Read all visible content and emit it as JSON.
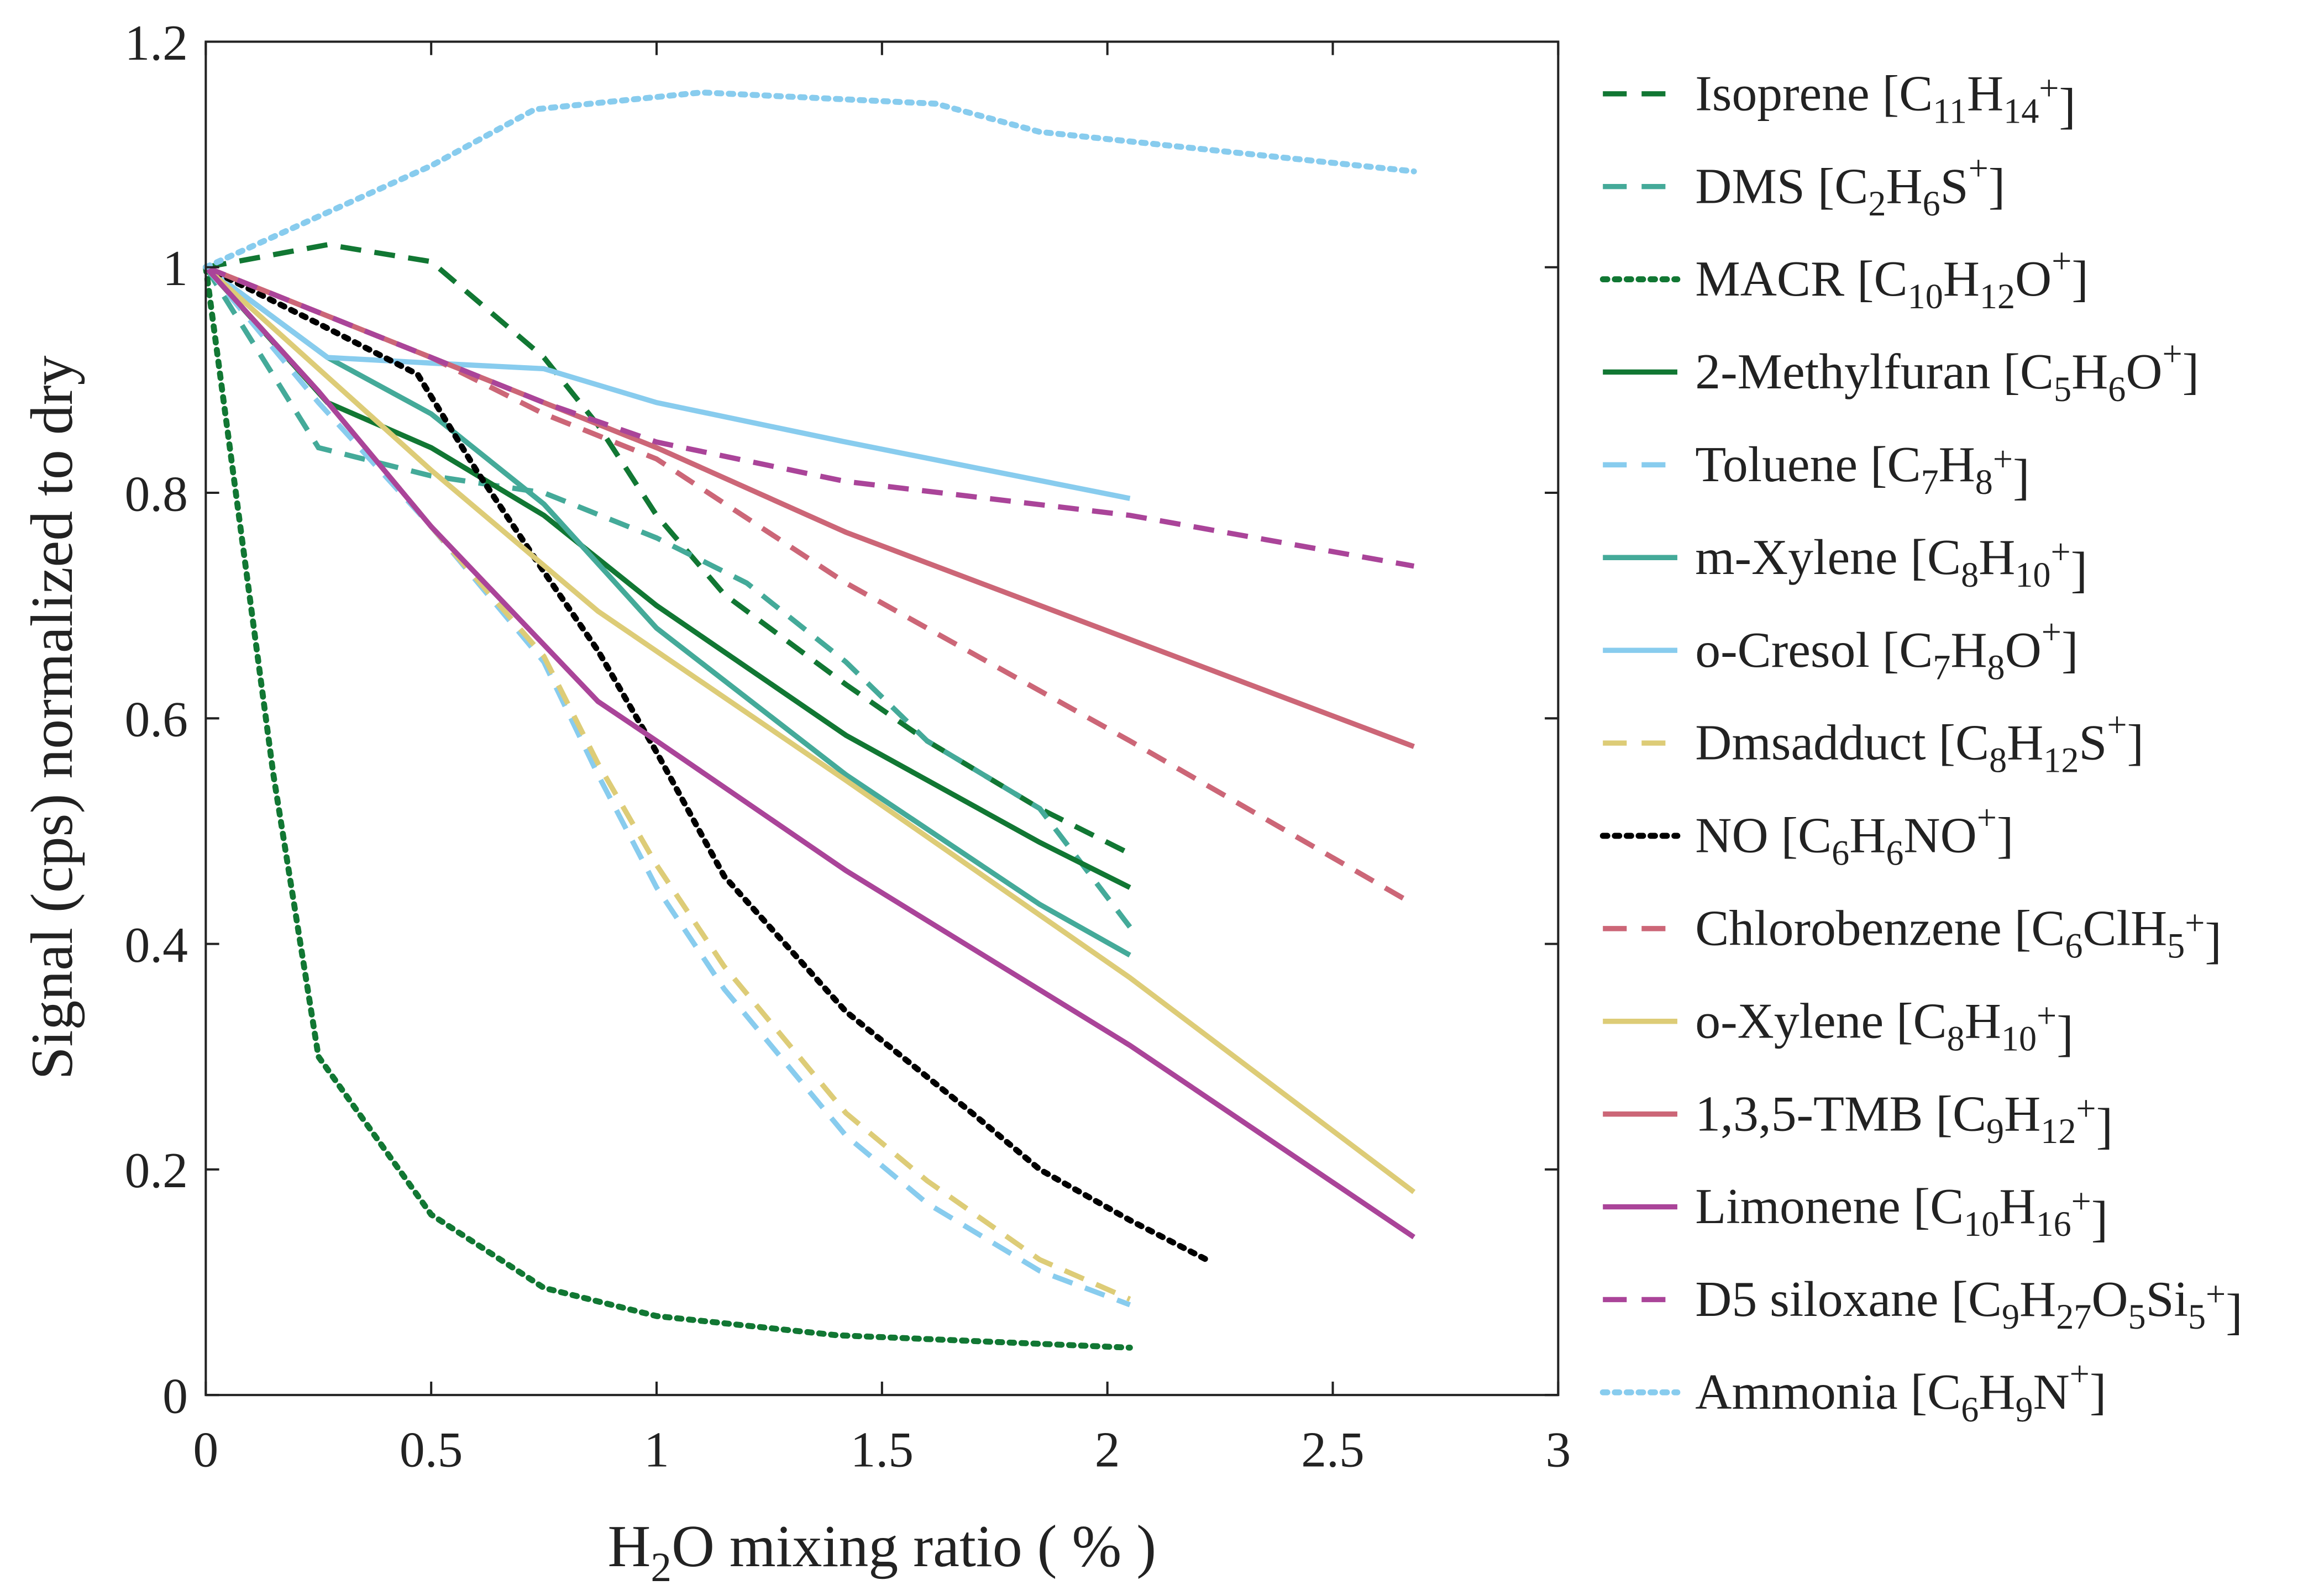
{
  "chart_data": {
    "type": "line",
    "title": "",
    "xlabel": [
      [
        "H",
        ""
      ],
      [
        "2",
        "sub"
      ],
      [
        "O mixing ratio ( % )",
        ""
      ]
    ],
    "ylabel": "Signal (cps) normalized to dry",
    "xlim": [
      0,
      3
    ],
    "ylim": [
      0,
      1.2
    ],
    "xticks": [
      "0",
      "0.5",
      "1",
      "1.5",
      "2",
      "2.5",
      "3"
    ],
    "yticks": [
      "0",
      "0.2",
      "0.4",
      "0.6",
      "0.8",
      "1",
      "1.2"
    ],
    "grid": false,
    "legend_position": "right-outside",
    "series": [
      {
        "name": "Isoprene",
        "formula": [
          [
            "C",
            ""
          ],
          [
            "11",
            "sub"
          ],
          [
            "H",
            ""
          ],
          [
            "14",
            "sub"
          ],
          [
            "+",
            "sup"
          ]
        ],
        "color": "#117733",
        "style": "dashed",
        "x": [
          0,
          0.27,
          0.5,
          0.75,
          0.87,
          1.0,
          1.15,
          1.42,
          1.6,
          1.85,
          2.05
        ],
        "y": [
          1,
          1.02,
          1.005,
          0.92,
          0.86,
          0.78,
          0.71,
          0.63,
          0.58,
          0.52,
          0.48
        ]
      },
      {
        "name": "DMS",
        "formula": [
          [
            "C",
            ""
          ],
          [
            "2",
            "sub"
          ],
          [
            "H",
            ""
          ],
          [
            "6",
            "sub"
          ],
          [
            "S",
            ""
          ],
          [
            "+",
            "sup"
          ]
        ],
        "color": "#44aa99",
        "style": "dashed",
        "x": [
          0,
          0.25,
          0.5,
          0.75,
          1.0,
          1.2,
          1.42,
          1.6,
          1.85,
          2.05
        ],
        "y": [
          1,
          0.84,
          0.815,
          0.8,
          0.76,
          0.72,
          0.65,
          0.58,
          0.52,
          0.415
        ]
      },
      {
        "name": "MACR",
        "formula": [
          [
            "C",
            ""
          ],
          [
            "10",
            "sub"
          ],
          [
            "H",
            ""
          ],
          [
            "12",
            "sub"
          ],
          [
            "O",
            ""
          ],
          [
            "+",
            "sup"
          ]
        ],
        "color": "#117733",
        "style": "dotted",
        "x": [
          0,
          0.15,
          0.25,
          0.5,
          0.75,
          1.0,
          1.4,
          2.05
        ],
        "y": [
          1,
          0.55,
          0.3,
          0.16,
          0.095,
          0.07,
          0.053,
          0.042
        ]
      },
      {
        "name": "2-Methylfuran",
        "formula": [
          [
            "C",
            ""
          ],
          [
            "5",
            "sub"
          ],
          [
            "H",
            ""
          ],
          [
            "6",
            "sub"
          ],
          [
            "O",
            ""
          ],
          [
            "+",
            "sup"
          ]
        ],
        "color": "#117733",
        "style": "solid",
        "x": [
          0,
          0.27,
          0.5,
          0.75,
          1.0,
          1.42,
          1.85,
          2.05
        ],
        "y": [
          1,
          0.88,
          0.84,
          0.78,
          0.7,
          0.585,
          0.49,
          0.45
        ]
      },
      {
        "name": "Toluene",
        "formula": [
          [
            "C",
            ""
          ],
          [
            "7",
            "sub"
          ],
          [
            "H",
            ""
          ],
          [
            "8",
            "sub"
          ],
          [
            "+",
            "sup"
          ]
        ],
        "color": "#88ccee",
        "style": "dashed",
        "x": [
          0,
          0.25,
          0.5,
          0.75,
          0.87,
          1.0,
          1.15,
          1.42,
          1.6,
          1.85,
          2.05
        ],
        "y": [
          1,
          0.88,
          0.77,
          0.65,
          0.55,
          0.45,
          0.36,
          0.23,
          0.17,
          0.11,
          0.08
        ]
      },
      {
        "name": "m-Xylene",
        "formula": [
          [
            "C",
            ""
          ],
          [
            "8",
            "sub"
          ],
          [
            "H",
            ""
          ],
          [
            "10",
            "sub"
          ],
          [
            "+",
            "sup"
          ]
        ],
        "color": "#44aa99",
        "style": "solid",
        "x": [
          0,
          0.27,
          0.5,
          0.75,
          1.0,
          1.42,
          1.85,
          2.05
        ],
        "y": [
          1,
          0.92,
          0.87,
          0.79,
          0.68,
          0.55,
          0.435,
          0.39
        ]
      },
      {
        "name": "o-Cresol",
        "formula": [
          [
            "C",
            ""
          ],
          [
            "7",
            "sub"
          ],
          [
            "H",
            ""
          ],
          [
            "8",
            "sub"
          ],
          [
            "O",
            ""
          ],
          [
            "+",
            "sup"
          ]
        ],
        "color": "#88ccee",
        "style": "solid",
        "x": [
          0,
          0.27,
          0.5,
          0.75,
          1.0,
          1.42,
          2.05
        ],
        "y": [
          1,
          0.92,
          0.915,
          0.91,
          0.88,
          0.845,
          0.795
        ]
      },
      {
        "name": "Dmsadduct",
        "formula": [
          [
            "C",
            ""
          ],
          [
            "8",
            "sub"
          ],
          [
            "H",
            ""
          ],
          [
            "12",
            "sub"
          ],
          [
            "S",
            ""
          ],
          [
            "+",
            "sup"
          ]
        ],
        "color": "#ddcc77",
        "style": "dashed",
        "x": [
          0,
          0.25,
          0.5,
          0.75,
          0.87,
          1.0,
          1.15,
          1.42,
          1.6,
          1.85,
          2.05
        ],
        "y": [
          1,
          0.89,
          0.77,
          0.655,
          0.56,
          0.47,
          0.38,
          0.25,
          0.19,
          0.12,
          0.085
        ]
      },
      {
        "name": "NO",
        "formula": [
          [
            "C",
            ""
          ],
          [
            "6",
            "sub"
          ],
          [
            "H",
            ""
          ],
          [
            "6",
            "sub"
          ],
          [
            "NO",
            ""
          ],
          [
            "+",
            "sup"
          ]
        ],
        "color": "#000000",
        "style": "dotted",
        "x": [
          0,
          0.25,
          0.47,
          0.6,
          0.75,
          0.87,
          1.0,
          1.15,
          1.42,
          1.7,
          1.85,
          2.05,
          2.22
        ],
        "y": [
          1,
          0.95,
          0.905,
          0.82,
          0.73,
          0.66,
          0.57,
          0.46,
          0.34,
          0.25,
          0.2,
          0.155,
          0.12
        ]
      },
      {
        "name": "Chlorobenzene",
        "formula": [
          [
            "C",
            ""
          ],
          [
            "6",
            "sub"
          ],
          [
            "ClH",
            ""
          ],
          [
            "5",
            "sub"
          ],
          [
            "+",
            "sup"
          ]
        ],
        "color": "#cc6677",
        "style": "dashed",
        "x": [
          0,
          0.25,
          0.5,
          0.75,
          1.0,
          1.42,
          2.05,
          2.68
        ],
        "y": [
          1,
          0.96,
          0.92,
          0.87,
          0.83,
          0.72,
          0.58,
          0.435
        ]
      },
      {
        "name": "o-Xylene",
        "formula": [
          [
            "C",
            ""
          ],
          [
            "8",
            "sub"
          ],
          [
            "H",
            ""
          ],
          [
            "10",
            "sub"
          ],
          [
            "+",
            "sup"
          ]
        ],
        "color": "#ddcc77",
        "style": "solid",
        "x": [
          0,
          0.25,
          0.5,
          0.87,
          1.42,
          2.05,
          2.68
        ],
        "y": [
          1,
          0.91,
          0.82,
          0.695,
          0.545,
          0.37,
          0.18
        ]
      },
      {
        "name": "1,3,5-TMB",
        "formula": [
          [
            "C",
            ""
          ],
          [
            "9",
            "sub"
          ],
          [
            "H",
            ""
          ],
          [
            "12",
            "sub"
          ],
          [
            "+",
            "sup"
          ]
        ],
        "color": "#cc6677",
        "style": "solid",
        "x": [
          0,
          0.5,
          1.0,
          1.42,
          2.05,
          2.68
        ],
        "y": [
          1,
          0.92,
          0.84,
          0.765,
          0.67,
          0.575
        ]
      },
      {
        "name": "Limonene",
        "formula": [
          [
            "C",
            ""
          ],
          [
            "10",
            "sub"
          ],
          [
            "H",
            ""
          ],
          [
            "16",
            "sub"
          ],
          [
            "+",
            "sup"
          ]
        ],
        "color": "#aa4499",
        "style": "solid",
        "x": [
          0,
          0.25,
          0.5,
          0.87,
          1.0,
          1.42,
          2.05,
          2.68
        ],
        "y": [
          1,
          0.89,
          0.77,
          0.615,
          0.58,
          0.465,
          0.31,
          0.14
        ]
      },
      {
        "name": "D5 siloxane",
        "formula": [
          [
            "C",
            ""
          ],
          [
            "9",
            "sub"
          ],
          [
            "H",
            ""
          ],
          [
            "27",
            "sub"
          ],
          [
            "O",
            ""
          ],
          [
            "5",
            "sub"
          ],
          [
            "Si",
            ""
          ],
          [
            "5",
            "sub"
          ],
          [
            "+",
            "sup"
          ]
        ],
        "color": "#aa4499",
        "style": "dashed",
        "x": [
          0,
          0.25,
          0.5,
          0.75,
          1.0,
          1.42,
          2.05,
          2.68
        ],
        "y": [
          1,
          0.96,
          0.92,
          0.88,
          0.845,
          0.81,
          0.78,
          0.735
        ]
      },
      {
        "name": "Ammonia",
        "formula": [
          [
            "C",
            ""
          ],
          [
            "6",
            "sub"
          ],
          [
            "H",
            ""
          ],
          [
            "9",
            "sub"
          ],
          [
            "N",
            ""
          ],
          [
            "+",
            "sup"
          ]
        ],
        "color": "#88ccee",
        "style": "dotted",
        "x": [
          0,
          0.5,
          0.73,
          1.1,
          1.62,
          1.85,
          2.68
        ],
        "y": [
          1,
          1.09,
          1.14,
          1.155,
          1.145,
          1.12,
          1.085
        ]
      }
    ]
  }
}
